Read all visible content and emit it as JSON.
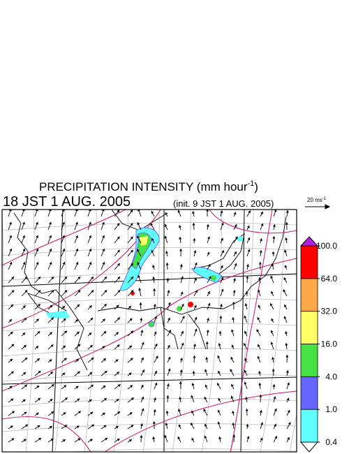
{
  "header": {
    "title": "PRECIPITATION INTENSITY (mm hour",
    "title_exponent": "-1",
    "title_close": ")",
    "valid_time": "18 JST 1 AUG. 2005",
    "init_time": "(init. 9 JST 1 AUG. 2005)"
  },
  "wind_legend": {
    "label": "20 ms",
    "label_exponent": "-1"
  },
  "colorbar": {
    "levels": [
      {
        "value": 0.4,
        "label": "0.4"
      },
      {
        "value": 1,
        "label": "1.0"
      },
      {
        "value": 4,
        "label": "4.0"
      },
      {
        "value": 16,
        "label": "16.0"
      },
      {
        "value": 32,
        "label": "32.0"
      },
      {
        "value": 64,
        "label": "64.0"
      },
      {
        "value": 100,
        "label": "100.0"
      }
    ],
    "colors": [
      "#60ffff",
      "#6666ff",
      "#44e044",
      "#ffff66",
      "#ffa84a",
      "#ff0000"
    ],
    "under_color": "#ffffff",
    "over_color": "#b020e0"
  }
}
